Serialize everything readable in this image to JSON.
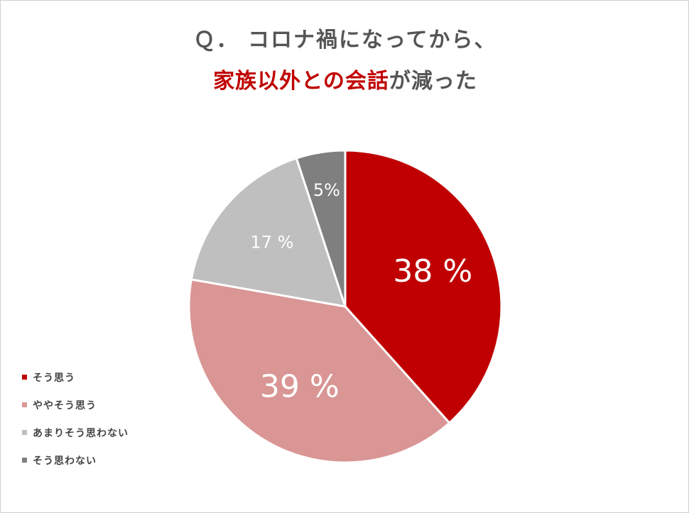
{
  "title": {
    "line1": "Ｑ．  コロナ禍になってから、",
    "line2_highlight": "家族以外との会話",
    "line2_rest": "が減った"
  },
  "colors": {
    "accent": "#c00000",
    "title_text": "#555555"
  },
  "chart_data": {
    "type": "pie",
    "categories": [
      "そう思う",
      "ややそう思う",
      "あまりそう思わない",
      "そう思わない"
    ],
    "values": [
      38,
      39,
      17,
      5
    ],
    "labels": [
      "38 %",
      "39 %",
      "17 %",
      "5%"
    ],
    "colors": [
      "#c00000",
      "#d99694",
      "#bfbfbf",
      "#7f7f7f"
    ],
    "label_colors": [
      "#ffffff",
      "#ffffff",
      "#ffffff",
      "#ffffff"
    ],
    "legend_position": "left"
  }
}
